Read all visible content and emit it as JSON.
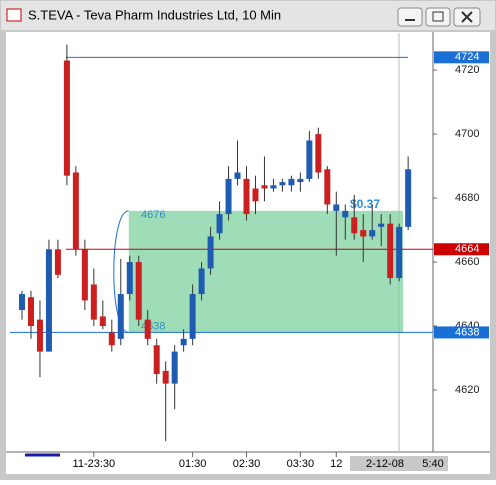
{
  "window_title": "S.TEVA - Teva Pharm Industries Ltd, 10 Min",
  "chart_data": {
    "type": "candlestick",
    "categories": [
      null,
      null,
      null,
      null,
      null,
      null,
      null,
      null,
      "11-23:30",
      null,
      null,
      null,
      null,
      null,
      null,
      null,
      null,
      null,
      null,
      "01:30",
      null,
      null,
      null,
      null,
      null,
      "02:30",
      null,
      null,
      null,
      null,
      null,
      "03:30",
      null,
      null,
      null,
      "12",
      null,
      null,
      null,
      null,
      null,
      null,
      null,
      null
    ],
    "open": [
      4645,
      4649,
      4642,
      4632,
      4664,
      4723,
      4688,
      4664,
      4653,
      4643,
      4638,
      4636,
      4650,
      4660,
      4642,
      4634,
      4626,
      4622,
      4634,
      4636,
      4650,
      4658,
      4669,
      4675,
      4686,
      4686,
      4683,
      4684,
      4683,
      4684,
      4684,
      4685,
      4686,
      4700,
      4689,
      4676,
      4674,
      4674,
      4670,
      4668,
      4671,
      4672,
      4655,
      4671
    ],
    "high": [
      4651,
      4651,
      4648,
      4667,
      4667,
      4728,
      4690,
      4667,
      4658,
      4648,
      4642,
      4661,
      4662,
      4662,
      4645,
      4636,
      4629,
      4634,
      4639,
      4653,
      4660,
      4671,
      4679,
      4690,
      4698,
      4690,
      4687,
      4693,
      4686,
      4686,
      4687,
      4688,
      4701,
      4702,
      4690,
      4682,
      4678,
      4681,
      4675,
      4678,
      4675,
      4675,
      4672,
      4693
    ],
    "low": [
      4642,
      4636,
      4624,
      4632,
      4655,
      4684,
      4662,
      4645,
      4640,
      4639,
      4632,
      4634,
      4648,
      4640,
      4634,
      4622,
      4604,
      4614,
      4632,
      4634,
      4648,
      4656,
      4667,
      4673,
      4684,
      4673,
      4675,
      4679,
      4682,
      4682,
      4682,
      4682,
      4685,
      4686,
      4675,
      4662,
      4667,
      4667,
      4660,
      4667,
      4665,
      4653,
      4654,
      4670
    ],
    "close": [
      4650,
      4640,
      4632,
      4664,
      4656,
      4687,
      4664,
      4648,
      4642,
      4640,
      4634,
      4650,
      4660,
      4642,
      4636,
      4625,
      4622,
      4632,
      4636,
      4650,
      4658,
      4668,
      4675,
      4686,
      4688,
      4675,
      4679,
      4683,
      4684,
      4685,
      4686,
      4686,
      4698,
      4688,
      4678,
      4678,
      4676,
      4669,
      4668,
      4670,
      4672,
      4655,
      4671,
      4689
    ],
    "up_color": "#1f5bb0",
    "down_color": "#cc1f1f",
    "ylim": [
      4600,
      4731.6
    ],
    "yticks": [
      4620,
      4640,
      4660,
      4680,
      4700,
      4720
    ],
    "levels": [
      {
        "value": 4724,
        "color": "#1a6fd6"
      },
      {
        "value": 4664,
        "color": "#cc0000"
      },
      {
        "value": 4638,
        "color": "#1a6fd6"
      }
    ],
    "box": {
      "top": 4676,
      "bottom": 4638,
      "annotation": "$0.37",
      "color": "#7fd1a0"
    },
    "cursor_date": "2-12-08",
    "cursor_time": "5:40"
  }
}
